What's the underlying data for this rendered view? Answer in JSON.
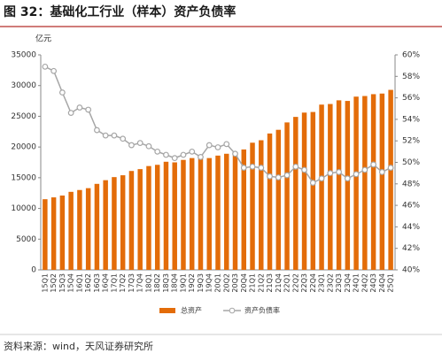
{
  "chart_data": {
    "type": "bar-line",
    "title": "图 32：基础化工行业（样本）资产负债率",
    "y_unit": "亿元",
    "source": "资料来源：wind，天风证券研究所",
    "categories": [
      "15Q1",
      "15Q2",
      "15Q3",
      "15Q4",
      "16Q1",
      "16Q2",
      "16Q3",
      "16Q4",
      "17Q1",
      "17Q2",
      "17Q3",
      "17Q4",
      "18Q1",
      "18Q2",
      "18Q3",
      "18Q4",
      "19Q1",
      "19Q2",
      "19Q3",
      "19Q4",
      "20Q1",
      "20Q2",
      "20Q3",
      "20Q4",
      "21Q1",
      "21Q2",
      "21Q3",
      "21Q4",
      "22Q1",
      "22Q2",
      "22Q3",
      "22Q4",
      "23Q1",
      "23Q2",
      "23Q3",
      "23Q4",
      "24Q1",
      "24Q2",
      "24Q3",
      "24Q4",
      "25Q1"
    ],
    "series": [
      {
        "name": "总资产",
        "color": "#e36c09",
        "type": "bar",
        "values": [
          11500,
          11800,
          12100,
          12700,
          13000,
          13300,
          14000,
          14600,
          15100,
          15400,
          16100,
          16400,
          16900,
          17100,
          17600,
          17500,
          17900,
          18200,
          18100,
          18200,
          18600,
          18900,
          18800,
          19600,
          20700,
          21100,
          22200,
          22800,
          24000,
          24900,
          25600,
          25700,
          26900,
          27000,
          27600,
          27500,
          28200,
          28300,
          28600,
          28700,
          29300
        ]
      },
      {
        "name": "资产负债率",
        "color": "#a6a6a6",
        "type": "line",
        "axis": "y2",
        "values": [
          58.9,
          58.5,
          56.5,
          54.6,
          55.1,
          54.9,
          53.0,
          52.5,
          52.5,
          52.2,
          51.6,
          51.8,
          51.5,
          51.0,
          50.7,
          50.4,
          50.7,
          51.0,
          50.5,
          51.6,
          51.4,
          51.7,
          50.8,
          49.5,
          49.6,
          49.5,
          48.7,
          48.6,
          48.8,
          49.6,
          49.3,
          48.1,
          48.5,
          49.0,
          49.1,
          48.5,
          48.9,
          49.3,
          49.8,
          49.1,
          49.5
        ]
      }
    ],
    "ylim": [
      0,
      35000
    ],
    "yticks": [
      0,
      5000,
      10000,
      15000,
      20000,
      25000,
      30000,
      35000
    ],
    "y2lim": [
      40,
      60
    ],
    "y2ticks": [
      {
        "value": 40,
        "label": "40%"
      },
      {
        "value": 42,
        "label": "42%"
      },
      {
        "value": 44,
        "label": "44%"
      },
      {
        "value": 46,
        "label": "46%"
      },
      {
        "value": 48,
        "label": "48%"
      },
      {
        "value": 50,
        "label": "50%"
      },
      {
        "value": 52,
        "label": "52%"
      },
      {
        "value": 54,
        "label": "54%"
      },
      {
        "value": 56,
        "label": "56%"
      },
      {
        "value": 58,
        "label": "58%"
      },
      {
        "value": 60,
        "label": "60%"
      }
    ]
  }
}
